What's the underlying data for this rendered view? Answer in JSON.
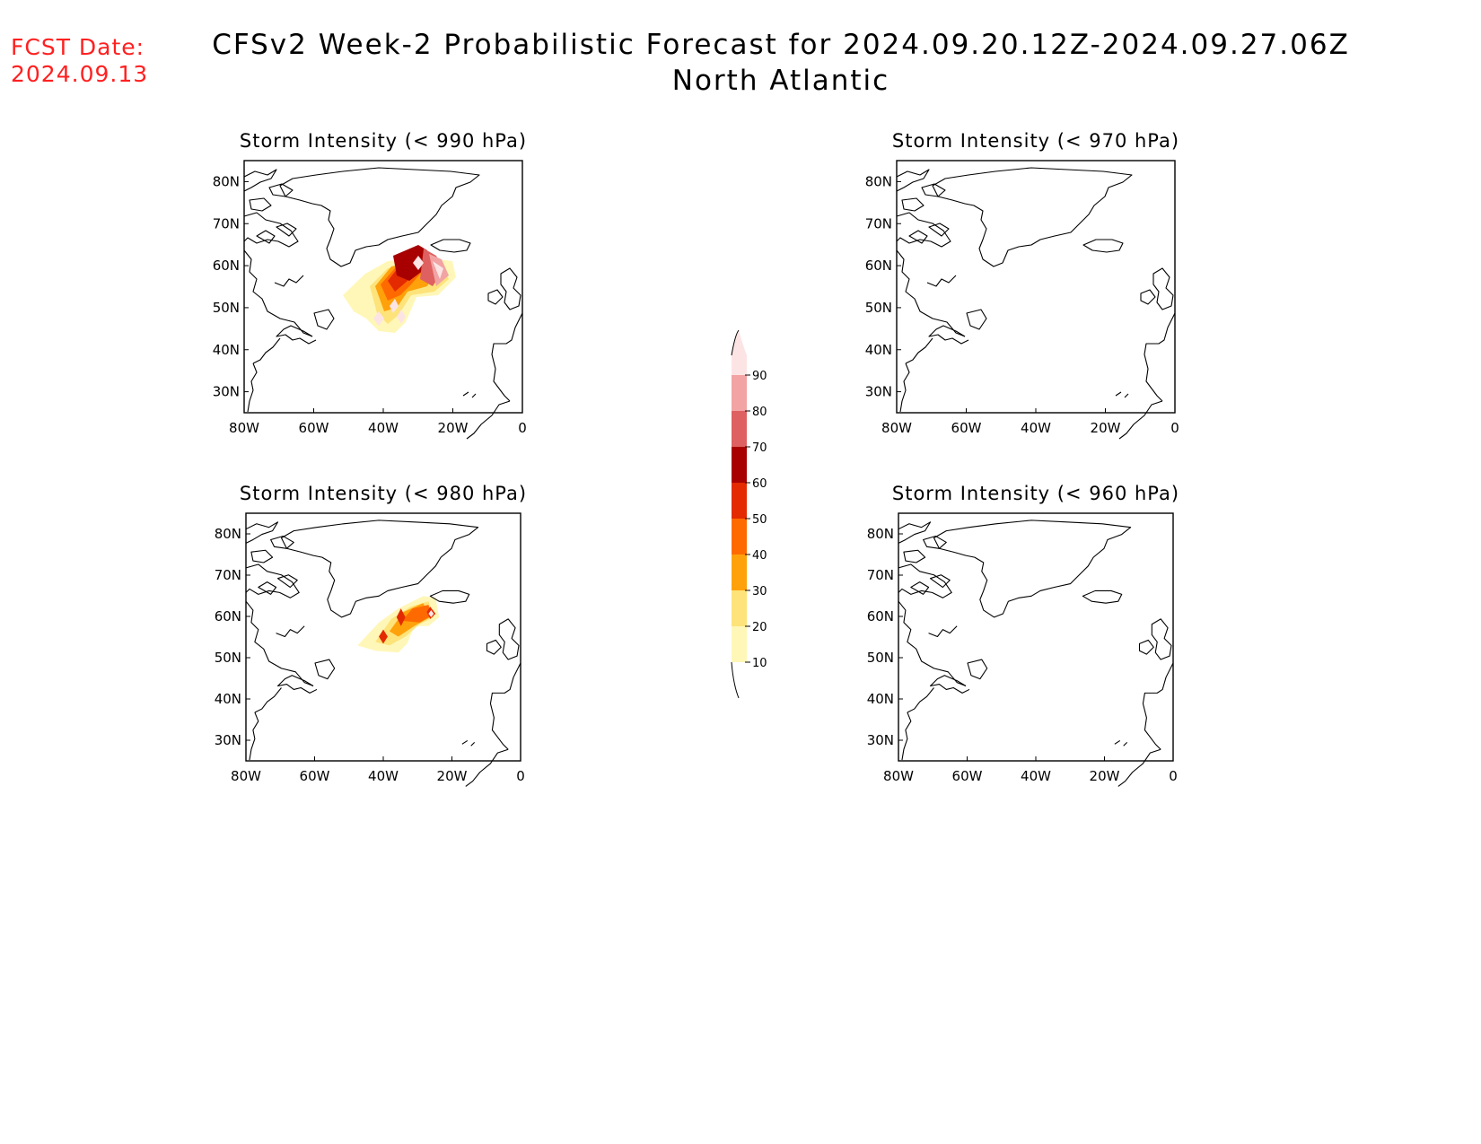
{
  "header": {
    "fcst_label": "FCST Date:",
    "fcst_date": "2024.09.13",
    "title": "CFSv2 Week-2 Probabilistic Forecast for 2024.09.20.12Z-2024.09.27.06Z",
    "subtitle": "North Atlantic"
  },
  "colors": {
    "date_text": "#ff2020",
    "scale": [
      "#fff7b8",
      "#fde37a",
      "#ffa10a",
      "#ff6a00",
      "#e32a00",
      "#a80000",
      "#de6060",
      "#f2a3a3",
      "#fde4e4"
    ]
  },
  "map_axes": {
    "lon_ticks": [
      "80W",
      "60W",
      "40W",
      "20W",
      "0"
    ],
    "lat_ticks": [
      "80N",
      "70N",
      "60N",
      "50N",
      "40N",
      "30N"
    ],
    "lon_range": [
      -80,
      0
    ],
    "lat_range": [
      25,
      85
    ]
  },
  "panels": [
    {
      "id": "p990",
      "title": "Storm Intensity (< 990 hPa)",
      "has_probability": true
    },
    {
      "id": "p970",
      "title": "Storm Intensity (< 970 hPa)",
      "has_probability": false
    },
    {
      "id": "p980",
      "title": "Storm Intensity (< 980 hPa)",
      "has_probability": true
    },
    {
      "id": "p960",
      "title": "Storm Intensity (< 960 hPa)",
      "has_probability": false
    }
  ],
  "colorbar": {
    "levels": [
      "10",
      "20",
      "30",
      "40",
      "50",
      "60",
      "70",
      "80",
      "90"
    ]
  }
}
